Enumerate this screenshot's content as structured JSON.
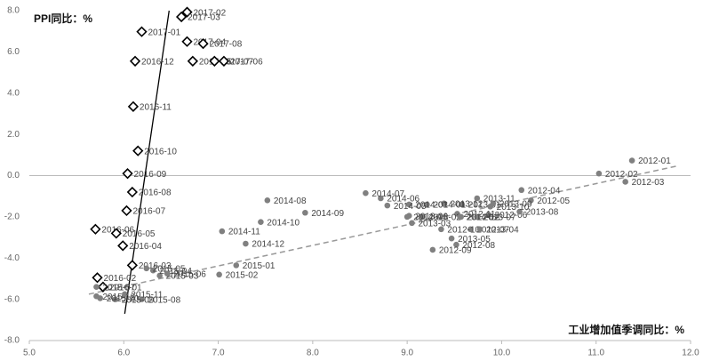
{
  "chart_data": {
    "type": "scatter",
    "y_label": "PPI同比：%",
    "x_label": "工业增加值季调同比：%",
    "xlim": [
      5.0,
      12.0
    ],
    "ylim": [
      -8.0,
      8.0
    ],
    "xticks": [
      {
        "value": 5,
        "label": "5.0"
      },
      {
        "value": 6,
        "label": "6.0"
      },
      {
        "value": 7,
        "label": "7.0"
      },
      {
        "value": 8,
        "label": "8.0"
      },
      {
        "value": 9,
        "label": "9.0"
      },
      {
        "value": 10,
        "label": "10.0"
      },
      {
        "value": 11,
        "label": "11.0"
      },
      {
        "value": 12,
        "label": "12.0"
      }
    ],
    "yticks": [
      {
        "value": -8,
        "label": "-8.0"
      },
      {
        "value": -6,
        "label": "-6.0"
      },
      {
        "value": -4,
        "label": "-4.0"
      },
      {
        "value": -2,
        "label": "-2.0"
      },
      {
        "value": 0,
        "label": "0.0"
      },
      {
        "value": 2,
        "label": "2.0"
      },
      {
        "value": 4,
        "label": "4.0"
      },
      {
        "value": 6,
        "label": "6.0"
      },
      {
        "value": 8,
        "label": "8.0"
      }
    ],
    "series": [
      {
        "marker": "diamond",
        "color": "#000000",
        "labels": [
          "2017-02",
          "2017-03",
          "2017-01",
          "2017-04",
          "2017-08",
          "2016-12",
          "2017-05",
          "2017-07",
          "2017-06",
          "2016-11",
          "2016-10",
          "2016-09",
          "2016-08",
          "2016-07",
          "2016-06",
          "2016-05",
          "2016-04",
          "2016-03",
          "2016-02",
          "2016-01"
        ],
        "x": [
          6.67,
          6.61,
          6.19,
          6.67,
          6.84,
          6.12,
          6.73,
          6.96,
          7.06,
          6.1,
          6.15,
          6.04,
          6.09,
          6.03,
          5.7,
          5.92,
          5.99,
          6.09,
          5.72,
          5.78
        ],
        "y": [
          7.93,
          7.7,
          6.98,
          6.5,
          6.4,
          5.55,
          5.55,
          5.55,
          5.55,
          3.35,
          1.2,
          0.1,
          -0.8,
          -1.7,
          -2.6,
          -2.8,
          -3.4,
          -4.35,
          -4.95,
          -5.4
        ]
      },
      {
        "marker": "dot",
        "color": "#808080",
        "labels": [
          "2012-01",
          "2012-02",
          "2012-03",
          "2012-04",
          "2012-05",
          "2012-06",
          "2012-07",
          "2012-08",
          "2012-09",
          "2012-10",
          "2012-11",
          "2012-12",
          "2013-01",
          "2013-02",
          "2013-03",
          "2013-04",
          "2013-05",
          "2013-06",
          "2013-07",
          "2013-08",
          "2013-09",
          "2013-10",
          "2013-11",
          "2013-12",
          "2014-01",
          "2014-02",
          "2014-03",
          "2014-04",
          "2014-05",
          "2014-06",
          "2014-07",
          "2014-08",
          "2014-09",
          "2014-10",
          "2014-11",
          "2014-12",
          "2015-01",
          "2015-02",
          "2015-03",
          "2015-04",
          "2015-05",
          "2015-06",
          "2015-07",
          "2015-08",
          "2015-09",
          "2015-10",
          "2015-11",
          "2015-12"
        ],
        "x": [
          11.38,
          11.03,
          11.31,
          10.21,
          10.31,
          9.86,
          9.67,
          9.52,
          9.27,
          9.36,
          9.53,
          9.57,
          9.58,
          9.16,
          9.05,
          9.77,
          9.47,
          9.02,
          9.74,
          10.19,
          9.91,
          9.88,
          9.74,
          9.39,
          9.21,
          9.56,
          9.02,
          9.0,
          8.79,
          8.72,
          8.56,
          7.52,
          7.92,
          7.45,
          7.04,
          7.29,
          7.19,
          7.01,
          6.38,
          6.31,
          6.24,
          6.46,
          5.71,
          6.19,
          5.91,
          5.75,
          6.01,
          5.71
        ],
        "y": [
          0.73,
          0.1,
          -0.3,
          -0.7,
          -1.2,
          -1.9,
          -2.6,
          -3.35,
          -3.6,
          -2.6,
          -1.85,
          -2.0,
          -1.4,
          -2.0,
          -2.3,
          -2.6,
          -3.05,
          -1.95,
          -2.0,
          -1.75,
          -1.35,
          -1.5,
          -1.1,
          -1.35,
          -1.4,
          -2.0,
          -1.4,
          -2.0,
          -1.45,
          -1.1,
          -0.85,
          -1.2,
          -1.8,
          -2.25,
          -2.7,
          -3.3,
          -4.35,
          -4.8,
          -4.85,
          -4.6,
          -4.5,
          -4.75,
          -5.4,
          -6.0,
          -6.0,
          -5.95,
          -5.75,
          -5.85
        ]
      }
    ],
    "trendlines": [
      {
        "style": "solid",
        "color": "#000000",
        "x": [
          6.01,
          6.48
        ],
        "y": [
          -6.7,
          8.0
        ]
      },
      {
        "style": "dashed",
        "color": "#999999",
        "x": [
          5.63,
          11.86
        ],
        "y": [
          -5.75,
          0.47
        ]
      }
    ]
  }
}
